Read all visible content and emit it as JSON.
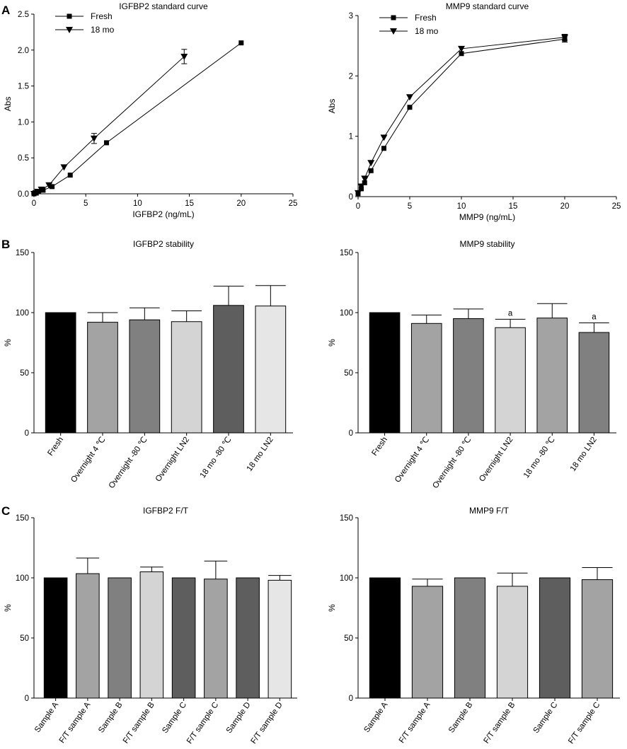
{
  "panels": [
    {
      "letter": "A"
    },
    {
      "letter": "B"
    },
    {
      "letter": "C"
    }
  ],
  "chart_data": [
    {
      "id": "a1",
      "type": "line",
      "title": "IGFBP2 standard curve",
      "xlabel": "IGFBP2 (ng/mL)",
      "ylabel": "Abs",
      "xlim": [
        0,
        25
      ],
      "ylim": [
        0,
        2.5
      ],
      "xticks": [
        0,
        5,
        10,
        15,
        20,
        25
      ],
      "yticks": [
        0.0,
        0.5,
        1.0,
        1.5,
        2.0,
        2.5
      ],
      "ytick_labels": [
        "0.0",
        "0.5",
        "1.0",
        "1.5",
        "2.0",
        "2.5"
      ],
      "legend_position": "top-left",
      "series": [
        {
          "name": "Fresh",
          "marker": "square",
          "x": [
            0,
            0.22,
            0.44,
            0.88,
            1.75,
            3.5,
            7,
            20
          ],
          "y": [
            0.0,
            0.01,
            0.03,
            0.05,
            0.1,
            0.26,
            0.71,
            2.1
          ],
          "err": [
            0,
            0,
            0,
            0,
            0,
            0,
            0,
            0
          ]
        },
        {
          "name": "18 mo",
          "marker": "triangle-down",
          "x": [
            0,
            0.18,
            0.36,
            0.72,
            1.45,
            2.9,
            5.8,
            14.5
          ],
          "y": [
            0.0,
            0.01,
            0.03,
            0.06,
            0.12,
            0.37,
            0.77,
            1.91
          ],
          "err": [
            0,
            0,
            0,
            0,
            0,
            0,
            0.07,
            0.1
          ]
        }
      ]
    },
    {
      "id": "a2",
      "type": "line",
      "title": "MMP9 standard curve",
      "xlabel": "MMP9 (ng/mL)",
      "ylabel": "Abs",
      "xlim": [
        0,
        25
      ],
      "ylim": [
        0,
        3
      ],
      "xticks": [
        0,
        5,
        10,
        15,
        20,
        25
      ],
      "yticks": [
        0,
        1,
        2,
        3
      ],
      "ytick_labels": [
        "0",
        "1",
        "2",
        "3"
      ],
      "legend_position": "top-left",
      "series": [
        {
          "name": "Fresh",
          "marker": "square",
          "x": [
            0,
            0.31,
            0.63,
            1.25,
            2.5,
            5,
            10,
            20
          ],
          "y": [
            0.05,
            0.13,
            0.23,
            0.43,
            0.8,
            1.48,
            2.37,
            2.61
          ],
          "err": [
            0,
            0,
            0,
            0,
            0,
            0,
            0,
            0.05
          ]
        },
        {
          "name": "18 mo",
          "marker": "triangle-down",
          "x": [
            0,
            0.31,
            0.63,
            1.25,
            2.5,
            5,
            10,
            20
          ],
          "y": [
            0.06,
            0.17,
            0.3,
            0.56,
            0.98,
            1.65,
            2.45,
            2.64
          ],
          "err": [
            0,
            0,
            0,
            0,
            0,
            0,
            0,
            0.05
          ]
        }
      ]
    },
    {
      "id": "b1",
      "type": "bar",
      "title": "IGFBP2 stability",
      "xlabel": "",
      "ylabel": "%",
      "ylim": [
        0,
        150
      ],
      "yticks": [
        0,
        50,
        100,
        150
      ],
      "categories": [
        "Fresh",
        "Overnight 4 ℃",
        "Overnight -80 ℃",
        "Overnight LN2",
        "18 mo -80 ℃",
        "18 mo LN2"
      ],
      "values": [
        100,
        92,
        94,
        92.5,
        106,
        105.5
      ],
      "errors": [
        0,
        8,
        10,
        9,
        16,
        17
      ],
      "annotations": [
        "",
        "",
        "",
        "",
        "",
        ""
      ],
      "colors": [
        "#000000",
        "#a3a3a3",
        "#808080",
        "#d4d4d4",
        "#5e5e5e",
        "#e6e6e6"
      ]
    },
    {
      "id": "b2",
      "type": "bar",
      "title": "MMP9 stability",
      "xlabel": "",
      "ylabel": "%",
      "ylim": [
        0,
        150
      ],
      "yticks": [
        0,
        50,
        100,
        150
      ],
      "categories": [
        "Fresh",
        "Overnight 4 ℃",
        "Overnight -80 ℃",
        "Overnight LN2",
        "18 mo -80 ℃",
        "18 mo LN2"
      ],
      "values": [
        100,
        91,
        95,
        87.5,
        95.5,
        83.5
      ],
      "errors": [
        0,
        7,
        8,
        7,
        12,
        8
      ],
      "annotations": [
        "",
        "",
        "",
        "a",
        "",
        "a"
      ],
      "colors": [
        "#000000",
        "#a3a3a3",
        "#808080",
        "#d4d4d4",
        "#a3a3a3",
        "#808080"
      ]
    },
    {
      "id": "c1",
      "type": "bar",
      "title": "IGFBP2 F/T",
      "xlabel": "",
      "ylabel": "%",
      "ylim": [
        0,
        150
      ],
      "yticks": [
        0,
        50,
        100,
        150
      ],
      "categories": [
        "Sample A",
        "F/T sample A",
        "Sample B",
        "F/T sample B",
        "Sample C",
        "F/T sample C",
        "Sample D",
        "F/T sample D"
      ],
      "values": [
        100,
        103.5,
        100,
        105,
        100,
        99,
        100,
        98
      ],
      "errors": [
        0,
        13,
        0,
        4,
        0,
        15,
        0,
        4
      ],
      "annotations": [
        "",
        "",
        "",
        "",
        "",
        "",
        "",
        ""
      ],
      "colors": [
        "#000000",
        "#a3a3a3",
        "#808080",
        "#d4d4d4",
        "#5e5e5e",
        "#a3a3a3",
        "#5e5e5e",
        "#e6e6e6"
      ]
    },
    {
      "id": "c2",
      "type": "bar",
      "title": "MMP9 F/T",
      "xlabel": "",
      "ylabel": "%",
      "ylim": [
        0,
        150
      ],
      "yticks": [
        0,
        50,
        100,
        150
      ],
      "categories": [
        "Sample A",
        "F/T sample A",
        "Sample B",
        "F/T sample B",
        "Sample C",
        "F/T sample C"
      ],
      "values": [
        100,
        93,
        100,
        93,
        100,
        98.5
      ],
      "errors": [
        0,
        6,
        0,
        11,
        0,
        10
      ],
      "annotations": [
        "",
        "",
        "",
        "",
        "",
        ""
      ],
      "colors": [
        "#000000",
        "#a3a3a3",
        "#808080",
        "#d4d4d4",
        "#5e5e5e",
        "#a3a3a3"
      ]
    }
  ]
}
